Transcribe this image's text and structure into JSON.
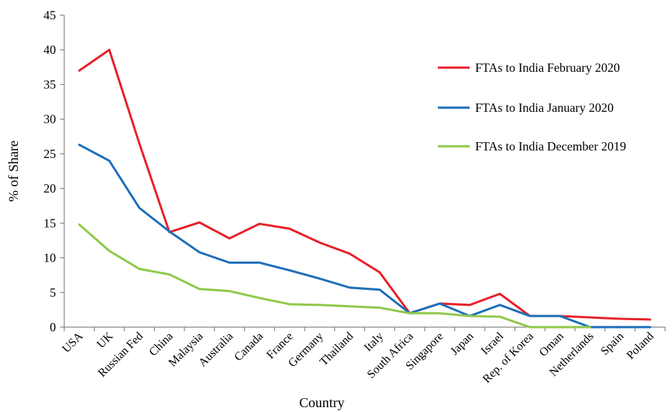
{
  "chart_data": {
    "type": "line",
    "title": "",
    "xlabel": "Country",
    "ylabel": "% of Share",
    "ylim": [
      0,
      45
    ],
    "yticks": [
      0,
      5,
      10,
      15,
      20,
      25,
      30,
      35,
      40,
      45
    ],
    "grid": false,
    "legend_position": "top-right",
    "categories": [
      "USA",
      "UK",
      "Russian Fed",
      "China",
      "Malaysia",
      "Australia",
      "Canada",
      "France",
      "Germany",
      "Thailand",
      "Italy",
      "South Africa",
      "Singapore",
      "Japan",
      "Israel",
      "Rep. of Korea",
      "Oman",
      "Netherlands",
      "Spain",
      "Poland"
    ],
    "series": [
      {
        "name": "FTAs to India February 2020",
        "color": "#e8202a",
        "values": [
          37,
          40,
          26.5,
          13.7,
          15.1,
          12.8,
          14.9,
          14.2,
          12.2,
          10.6,
          7.9,
          2.0,
          3.4,
          3.2,
          4.8,
          1.6,
          1.6,
          1.4,
          1.2,
          1.1
        ]
      },
      {
        "name": "FTAs to India January 2020",
        "color": "#1e6fba",
        "values": [
          26.3,
          24,
          17.2,
          13.8,
          10.8,
          9.3,
          9.3,
          8.2,
          7.0,
          5.7,
          5.4,
          2.0,
          3.4,
          1.6,
          3.2,
          1.6,
          1.6,
          0,
          0,
          0
        ]
      },
      {
        "name": "FTAs to India December 2019",
        "color": "#8fc94a",
        "values": [
          14.8,
          11.0,
          8.4,
          7.6,
          5.5,
          5.2,
          4.2,
          3.3,
          3.2,
          3.0,
          2.8,
          2.0,
          2.0,
          1.6,
          1.5,
          0,
          0,
          0,
          null,
          null
        ]
      }
    ]
  }
}
